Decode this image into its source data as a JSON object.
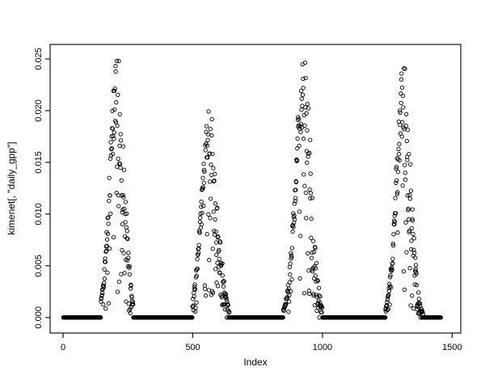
{
  "figure": {
    "background": "#ffffff",
    "foreground": "#000000"
  },
  "chart_data": {
    "type": "scatter",
    "title": "",
    "xlabel": "Index",
    "ylabel": "kimenet[, \"daily_gpp\"]",
    "xlim": [
      -50,
      1533
    ],
    "ylim": [
      -0.0015,
      0.0264
    ],
    "xticks": [
      0,
      500,
      1000,
      1500
    ],
    "xtick_labels": [
      "0",
      "500",
      "1000",
      "1500"
    ],
    "yticks": [
      0,
      0.005,
      0.01,
      0.015,
      0.02,
      0.025
    ],
    "ytick_labels": [
      "0.000",
      "0.005",
      "0.010",
      "0.015",
      "0.020",
      "0.025"
    ],
    "grid": false,
    "legend": null,
    "marker": {
      "shape": "open-circle",
      "color": "#000000",
      "radius_px": 2.2,
      "stroke_width": 0.9
    },
    "n_points_approx": 1456,
    "description": "Daily GPP time series plotted against index (~4 annual cycles): long runs of exactly zero in winter (dense solid band at y=0) and bell-shaped summer peaks with wide downward scatter, maxima near 0.0255, 0.0205, 0.0255 and 0.0245.",
    "generation": {
      "seed": 42,
      "zero_runs": [
        [
          1,
          145
        ],
        [
          272,
          498
        ],
        [
          642,
          848
        ],
        [
          1000,
          1242
        ],
        [
          1392,
          1456
        ]
      ],
      "peaks": [
        {
          "range": [
            146,
            271
          ],
          "center": 208,
          "sigma": 27,
          "amp": 0.0258
        },
        {
          "range": [
            499,
            641
          ],
          "center": 565,
          "sigma": 30,
          "amp": 0.0206
        },
        {
          "range": [
            849,
            999
          ],
          "center": 926,
          "sigma": 29,
          "amp": 0.0257
        },
        {
          "range": [
            1243,
            1391
          ],
          "center": 1312,
          "sigma": 27,
          "amp": 0.0247
        }
      ],
      "noise": {
        "rise_low_outlier_prob": 0.15,
        "rise_band": [
          0.7,
          1.0
        ],
        "fall_low_outlier_prob": 0.25,
        "fall_band": [
          0.45,
          1.0
        ]
      }
    }
  }
}
